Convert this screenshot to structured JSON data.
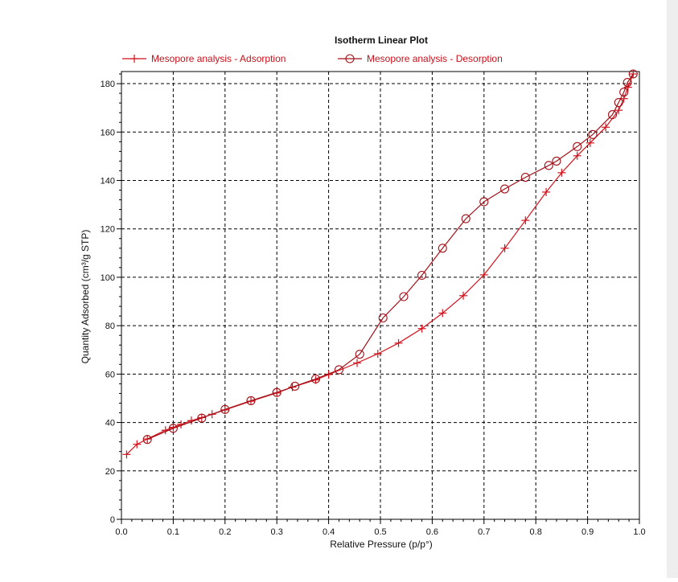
{
  "chart_data": {
    "type": "line",
    "title": "Isotherm Linear Plot",
    "xlabel": "Relative Pressure (p/p°)",
    "ylabel": "Quantity Adsorbed (cm³/g STP)",
    "xlim": [
      0,
      1.0
    ],
    "ylim": [
      0,
      185
    ],
    "x_ticks": [
      0.0,
      0.1,
      0.2,
      0.3,
      0.4,
      0.5,
      0.6,
      0.7,
      0.8,
      0.9,
      1.0
    ],
    "x_tick_labels": [
      "0.0",
      "0.1",
      "0.2",
      "0.3",
      "0.4",
      "0.5",
      "0.6",
      "0.7",
      "0.8",
      "0.9",
      "1.0"
    ],
    "y_ticks": [
      0,
      20,
      40,
      60,
      80,
      100,
      120,
      140,
      160,
      180
    ],
    "y_tick_labels": [
      "0",
      "20",
      "40",
      "60",
      "80",
      "100",
      "120",
      "140",
      "160",
      "180"
    ],
    "grid": true,
    "legend_position": "top",
    "series": [
      {
        "name": "Mesopore analysis - Adsorption",
        "marker": "plus",
        "color": "#d4121c",
        "points": [
          [
            0.01,
            26.8
          ],
          [
            0.03,
            31.0
          ],
          [
            0.05,
            33.2
          ],
          [
            0.085,
            36.8
          ],
          [
            0.1,
            38.0
          ],
          [
            0.115,
            39.2
          ],
          [
            0.135,
            40.8
          ],
          [
            0.155,
            42.0
          ],
          [
            0.175,
            43.4
          ],
          [
            0.2,
            45.2
          ],
          [
            0.25,
            48.8
          ],
          [
            0.3,
            52.2
          ],
          [
            0.33,
            54.6
          ],
          [
            0.375,
            57.6
          ],
          [
            0.4,
            59.8
          ],
          [
            0.455,
            64.6
          ],
          [
            0.495,
            68.4
          ],
          [
            0.535,
            72.8
          ],
          [
            0.58,
            78.8
          ],
          [
            0.62,
            85.2
          ],
          [
            0.66,
            92.4
          ],
          [
            0.7,
            101.0
          ],
          [
            0.74,
            112.0
          ],
          [
            0.78,
            123.5
          ],
          [
            0.82,
            135.2
          ],
          [
            0.85,
            143.2
          ],
          [
            0.88,
            150.2
          ],
          [
            0.905,
            155.5
          ],
          [
            0.935,
            162.0
          ],
          [
            0.96,
            169.0
          ],
          [
            0.97,
            173.8
          ],
          [
            0.978,
            178.5
          ],
          [
            0.988,
            184.0
          ]
        ]
      },
      {
        "name": "Mesopore analysis - Desorption",
        "marker": "circle",
        "color": "#a3121a",
        "points": [
          [
            0.988,
            184.0
          ],
          [
            0.977,
            180.5
          ],
          [
            0.97,
            176.5
          ],
          [
            0.96,
            172.2
          ],
          [
            0.948,
            167.2
          ],
          [
            0.91,
            159.0
          ],
          [
            0.88,
            154.0
          ],
          [
            0.84,
            148.0
          ],
          [
            0.825,
            146.2
          ],
          [
            0.78,
            141.3
          ],
          [
            0.74,
            136.5
          ],
          [
            0.7,
            131.2
          ],
          [
            0.665,
            124.2
          ],
          [
            0.62,
            112.0
          ],
          [
            0.58,
            100.8
          ],
          [
            0.545,
            92.0
          ],
          [
            0.505,
            83.2
          ],
          [
            0.46,
            68.2
          ],
          [
            0.42,
            61.8
          ],
          [
            0.375,
            58.0
          ],
          [
            0.335,
            55.0
          ],
          [
            0.3,
            52.4
          ],
          [
            0.25,
            49.0
          ],
          [
            0.2,
            45.4
          ],
          [
            0.155,
            41.8
          ],
          [
            0.1,
            37.6
          ],
          [
            0.05,
            33.0
          ]
        ]
      }
    ]
  }
}
